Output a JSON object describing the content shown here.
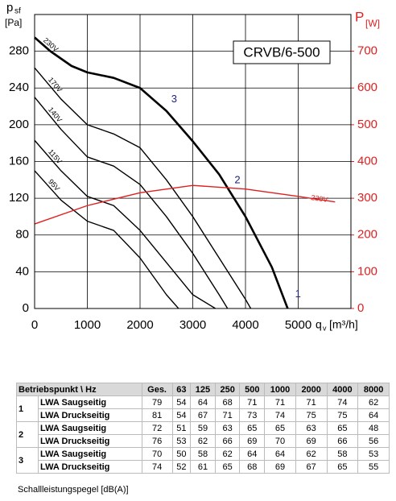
{
  "chart_data": {
    "type": "line",
    "title": "CRVB/6-500",
    "y_label": "p",
    "y_label_sub": "sf",
    "y_unit": "[Pa]",
    "y2_label": "P",
    "y2_unit": "[W]",
    "x_label": "q",
    "x_label_sub": "v",
    "x_unit": "[m³/h]",
    "xlim": [
      0,
      6000
    ],
    "xticks": [
      0,
      1000,
      2000,
      3000,
      4000,
      5000
    ],
    "ylim": [
      0,
      320
    ],
    "yticks": [
      0,
      40,
      80,
      120,
      160,
      200,
      240,
      280
    ],
    "y2lim": [
      0,
      800
    ],
    "y2ticks": [
      0,
      100,
      200,
      300,
      400,
      500,
      600,
      700
    ],
    "grid": true,
    "series": [
      {
        "name": "230V",
        "color": "#000000",
        "width": 2.6,
        "x": [
          0,
          300,
          700,
          1000,
          1500,
          2000,
          2500,
          3000,
          3500,
          4000,
          4500,
          4800
        ],
        "values": [
          295,
          280,
          264,
          257,
          251,
          240,
          215,
          182,
          146,
          100,
          45,
          0
        ]
      },
      {
        "name": "170V",
        "color": "#000000",
        "width": 1.4,
        "x": [
          0,
          500,
          1000,
          1500,
          2000,
          2500,
          3000,
          3500,
          4000,
          4100
        ],
        "values": [
          262,
          228,
          200,
          190,
          175,
          140,
          100,
          55,
          10,
          0
        ]
      },
      {
        "name": "140V",
        "color": "#000000",
        "width": 1.4,
        "x": [
          0,
          500,
          1000,
          1500,
          2000,
          2500,
          3000,
          3500,
          3660
        ],
        "values": [
          230,
          195,
          165,
          155,
          135,
          100,
          60,
          15,
          0
        ]
      },
      {
        "name": "115V",
        "color": "#000000",
        "width": 1.4,
        "x": [
          0,
          500,
          1000,
          1500,
          2000,
          2500,
          3000,
          3430
        ],
        "values": [
          183,
          150,
          122,
          112,
          85,
          50,
          15,
          0
        ]
      },
      {
        "name": "95V",
        "color": "#000000",
        "width": 1.4,
        "x": [
          0,
          500,
          1000,
          1500,
          2000,
          2500,
          2730
        ],
        "values": [
          150,
          118,
          95,
          85,
          55,
          15,
          0
        ]
      },
      {
        "name": "230V",
        "color": "#e02020",
        "width": 1.4,
        "axis": "y2",
        "x": [
          0,
          1000,
          2000,
          3000,
          4000,
          5000,
          5700
        ],
        "values": [
          230,
          280,
          315,
          335,
          325,
          305,
          290
        ]
      }
    ],
    "points": [
      {
        "label": "1",
        "x": 4850,
        "y": 12
      },
      {
        "label": "2",
        "x": 3700,
        "y": 136
      },
      {
        "label": "3",
        "x": 2500,
        "y": 224
      }
    ]
  },
  "table": {
    "header": [
      "Betriebspunkt \\ Hz",
      "Ges.",
      "63",
      "125",
      "250",
      "500",
      "1000",
      "2000",
      "4000",
      "8000"
    ],
    "groups": [
      {
        "point": "1",
        "rows": [
          {
            "label": "LWA Saugseitig",
            "values": [
              79,
              54,
              64,
              68,
              71,
              71,
              71,
              74,
              62
            ]
          },
          {
            "label": "LWA Druckseitig",
            "values": [
              81,
              54,
              67,
              71,
              73,
              74,
              75,
              75,
              64
            ]
          }
        ]
      },
      {
        "point": "2",
        "rows": [
          {
            "label": "LWA Saugseitig",
            "values": [
              72,
              51,
              59,
              63,
              65,
              65,
              63,
              65,
              48
            ]
          },
          {
            "label": "LWA Druckseitig",
            "values": [
              76,
              53,
              62,
              66,
              69,
              70,
              69,
              66,
              56
            ]
          }
        ]
      },
      {
        "point": "3",
        "rows": [
          {
            "label": "LWA Saugseitig",
            "values": [
              70,
              50,
              58,
              62,
              64,
              64,
              62,
              58,
              53
            ]
          },
          {
            "label": "LWA Druckseitig",
            "values": [
              74,
              52,
              61,
              65,
              68,
              69,
              67,
              65,
              55
            ]
          }
        ]
      }
    ],
    "footnote": "Schallleistungspegel [dB(A)]"
  }
}
